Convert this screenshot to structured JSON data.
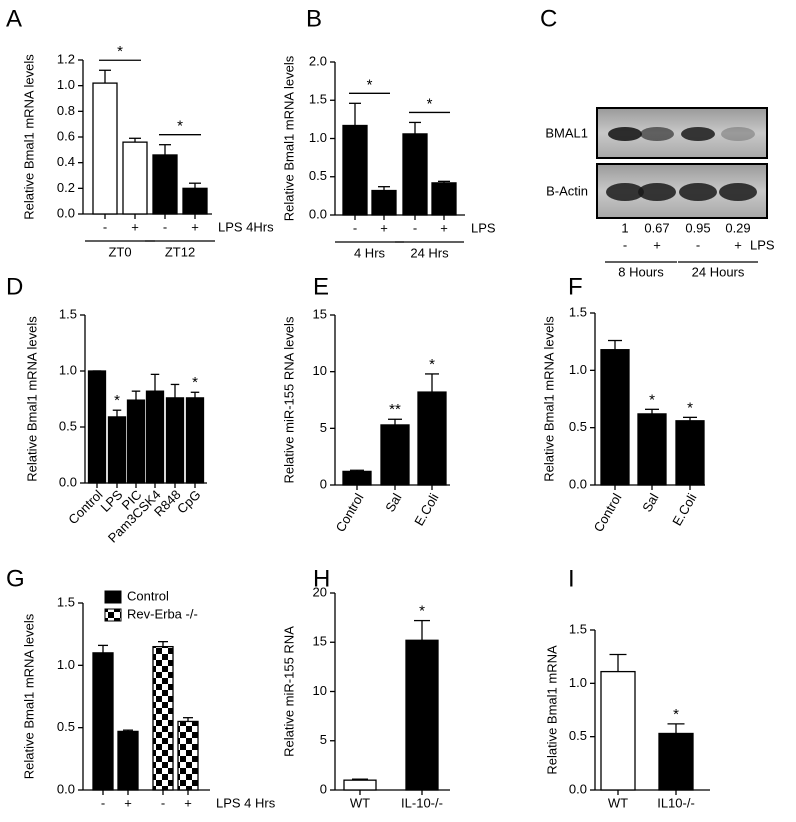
{
  "chart_data": [
    {
      "panel": "A",
      "type": "bar",
      "ylabel": "Relative Bmal1 mRNA levels",
      "categories": [
        "-",
        "+",
        "-",
        "+"
      ],
      "values": [
        1.02,
        0.56,
        0.46,
        0.2
      ],
      "errors": [
        0.1,
        0.03,
        0.08,
        0.04
      ],
      "bar_colors": [
        "#ffffff",
        "#ffffff",
        "#000000",
        "#000000"
      ],
      "ylim": [
        0,
        1.2
      ],
      "yticks": [
        {
          "value": 0,
          "label": "0.0"
        },
        0.2,
        0.4,
        0.6,
        0.8,
        {
          "value": 1,
          "label": "1.0"
        },
        1.2
      ],
      "treatment": "LPS 4Hrs",
      "groups": [
        {
          "label": "ZT0",
          "categories": [
            0,
            1
          ]
        },
        {
          "label": "ZT12",
          "categories": [
            2,
            3
          ]
        }
      ],
      "brackets": [
        {
          "categories": [
            0,
            1
          ],
          "label": "*"
        },
        {
          "categories": [
            2,
            3
          ],
          "label": "*"
        }
      ]
    },
    {
      "panel": "B",
      "type": "bar",
      "ylabel": "Relative Bmal1 mRNA levels",
      "categories": [
        "-",
        "+",
        "-",
        "+"
      ],
      "values": [
        1.17,
        0.32,
        1.06,
        0.42
      ],
      "errors": [
        0.29,
        0.05,
        0.15,
        0.02
      ],
      "color": "#000000",
      "ylim": [
        0,
        2
      ],
      "yticks": [
        {
          "value": 0,
          "label": "0.0"
        },
        0.5,
        {
          "value": 1,
          "label": "1.0"
        },
        1.5,
        {
          "value": 2,
          "label": "2.0"
        }
      ],
      "treatment": "LPS",
      "groups": [
        {
          "label": "4 Hrs",
          "categories": [
            0,
            1
          ]
        },
        {
          "label": "24 Hrs",
          "categories": [
            2,
            3
          ]
        }
      ],
      "brackets": [
        {
          "categories": [
            0,
            1
          ],
          "label": "*"
        },
        {
          "categories": [
            2,
            3
          ],
          "label": "*"
        }
      ]
    },
    {
      "panel": "C",
      "type": "blot",
      "bands": [
        "BMAL1",
        "B-Actin"
      ],
      "values": [
        1,
        0.67,
        0.95,
        0.29
      ],
      "categories": [
        "-",
        "+",
        "-",
        "+"
      ],
      "treatment": "LPS",
      "groups": [
        {
          "label": "8 Hours",
          "categories": [
            0,
            1
          ]
        },
        {
          "label": "24 Hours",
          "categories": [
            2,
            3
          ]
        }
      ]
    },
    {
      "panel": "D",
      "type": "bar",
      "ylabel": "Relative Bmal1 mRNA levels",
      "categories": [
        "Control",
        "LPS",
        "PIC",
        "Pam3CSK4",
        "R848",
        "CpG"
      ],
      "values": [
        1,
        0.59,
        0.74,
        0.82,
        0.76,
        0.76
      ],
      "errors": [
        0,
        0.06,
        0.08,
        0.15,
        0.12,
        0.05
      ],
      "color": "#000000",
      "xtick_rotation": -45,
      "ylim": [
        0,
        1.5
      ],
      "yticks": [
        {
          "value": 0,
          "label": "0.0"
        },
        0.5,
        {
          "value": 1,
          "label": "1.0"
        },
        1.5
      ],
      "stars": [
        null,
        "*",
        null,
        null,
        null,
        "*"
      ]
    },
    {
      "panel": "E",
      "type": "bar",
      "ylabel": "Relative miR-155 RNA levels",
      "categories": [
        "Control",
        "Sal",
        "E.Coli"
      ],
      "values": [
        1.2,
        5.3,
        8.2
      ],
      "errors": [
        0.1,
        0.5,
        1.6
      ],
      "color": "#000000",
      "xtick_rotation": -60,
      "ylim": [
        0,
        15
      ],
      "yticks": [
        0,
        5,
        10,
        15
      ],
      "stars": [
        null,
        "**",
        "*"
      ]
    },
    {
      "panel": "F",
      "type": "bar",
      "ylabel": "Relative Bmal1 mRNA levels",
      "categories": [
        "Control",
        "Sal",
        "E.Coli"
      ],
      "values": [
        1.18,
        0.62,
        0.56
      ],
      "errors": [
        0.08,
        0.04,
        0.03
      ],
      "color": "#000000",
      "xtick_rotation": -60,
      "ylim": [
        0,
        1.5
      ],
      "yticks": [
        {
          "value": 0,
          "label": "0.0"
        },
        0.5,
        {
          "value": 1,
          "label": "1.0"
        },
        1.5
      ],
      "stars": [
        null,
        "*",
        "*"
      ]
    },
    {
      "panel": "G",
      "type": "bar",
      "ylabel": "Relative Bmal1 mRNA levels",
      "categories": [
        "-",
        "+",
        "-",
        "+"
      ],
      "series": [
        {
          "name": "Control",
          "color": "#000000",
          "values": [
            1.1,
            0.47,
            null,
            null
          ],
          "errors": [
            0.06,
            0.01,
            null,
            null
          ]
        },
        {
          "name": "Rev-Erba -/-",
          "color": "#000000",
          "pattern": "checker",
          "values": [
            null,
            null,
            1.15,
            0.55
          ],
          "errors": [
            null,
            null,
            0.04,
            0.03
          ]
        }
      ],
      "ylim": [
        0,
        1.5
      ],
      "yticks": [
        {
          "value": 0,
          "label": "0.0"
        },
        0.5,
        {
          "value": 1,
          "label": "1.0"
        },
        1.5
      ],
      "treatment": "LPS 4 Hrs"
    },
    {
      "panel": "H",
      "type": "bar",
      "ylabel": "Relative miR-155 RNA",
      "categories": [
        "WT",
        "IL-10-/-"
      ],
      "values": [
        1,
        15.2
      ],
      "errors": [
        0.1,
        2
      ],
      "bar_colors": [
        "#ffffff",
        "#000000"
      ],
      "ylim": [
        0,
        20
      ],
      "yticks": [
        0,
        5,
        10,
        15,
        20
      ],
      "stars": [
        null,
        "*"
      ]
    },
    {
      "panel": "I",
      "type": "bar",
      "ylabel": "Relative Bmal1 mRNA",
      "categories": [
        "WT",
        "IL10-/-"
      ],
      "values": [
        1.11,
        0.53
      ],
      "errors": [
        0.16,
        0.09
      ],
      "bar_colors": [
        "#ffffff",
        "#000000"
      ],
      "ylim": [
        0,
        1.5
      ],
      "yticks": [
        {
          "value": 0,
          "label": "0.0"
        },
        0.5,
        {
          "value": 1,
          "label": "1.0"
        },
        1.5
      ],
      "stars": [
        null,
        "*"
      ]
    }
  ]
}
